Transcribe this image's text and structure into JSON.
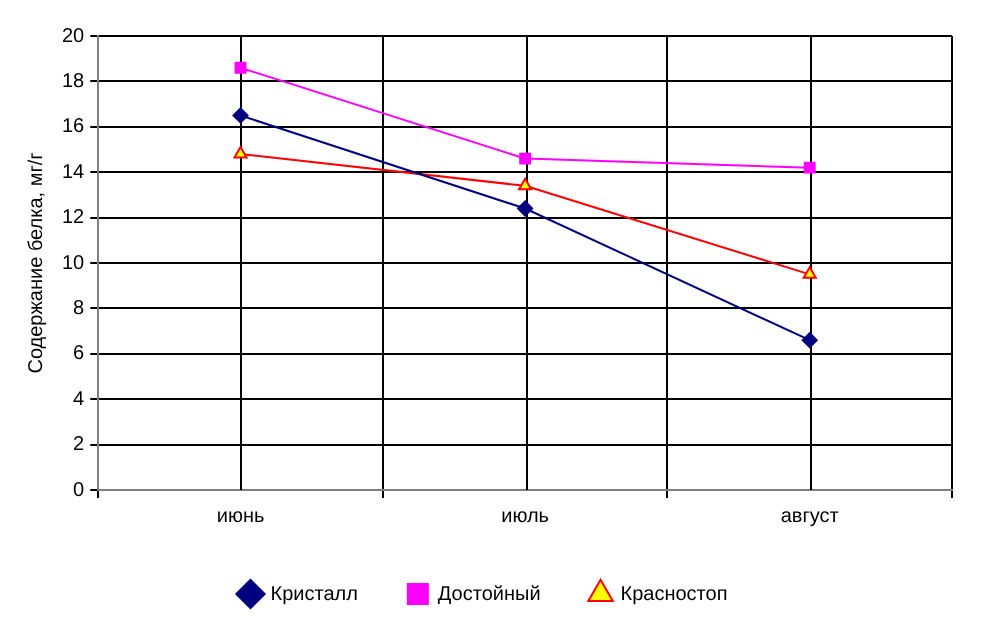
{
  "chart_data": {
    "type": "line",
    "ylabel": "Содержание белка, мг/г",
    "categories": [
      "июнь",
      "июль",
      "август"
    ],
    "series": [
      {
        "name": "Кристалл",
        "color": "#000080",
        "marker": "diamond",
        "values": [
          16.5,
          12.4,
          6.6
        ]
      },
      {
        "name": "Достойный",
        "color": "#ff00ff",
        "marker": "square",
        "values": [
          18.6,
          14.6,
          14.2
        ]
      },
      {
        "name": "Красностоп",
        "color": "#ff0000",
        "marker": "triangle",
        "values": [
          14.8,
          13.4,
          9.5
        ]
      }
    ],
    "ylim": [
      0,
      20
    ],
    "yticks": [
      0,
      2,
      4,
      6,
      8,
      10,
      12,
      14,
      16,
      18,
      20
    ],
    "grid": true,
    "legend": "bottom"
  }
}
